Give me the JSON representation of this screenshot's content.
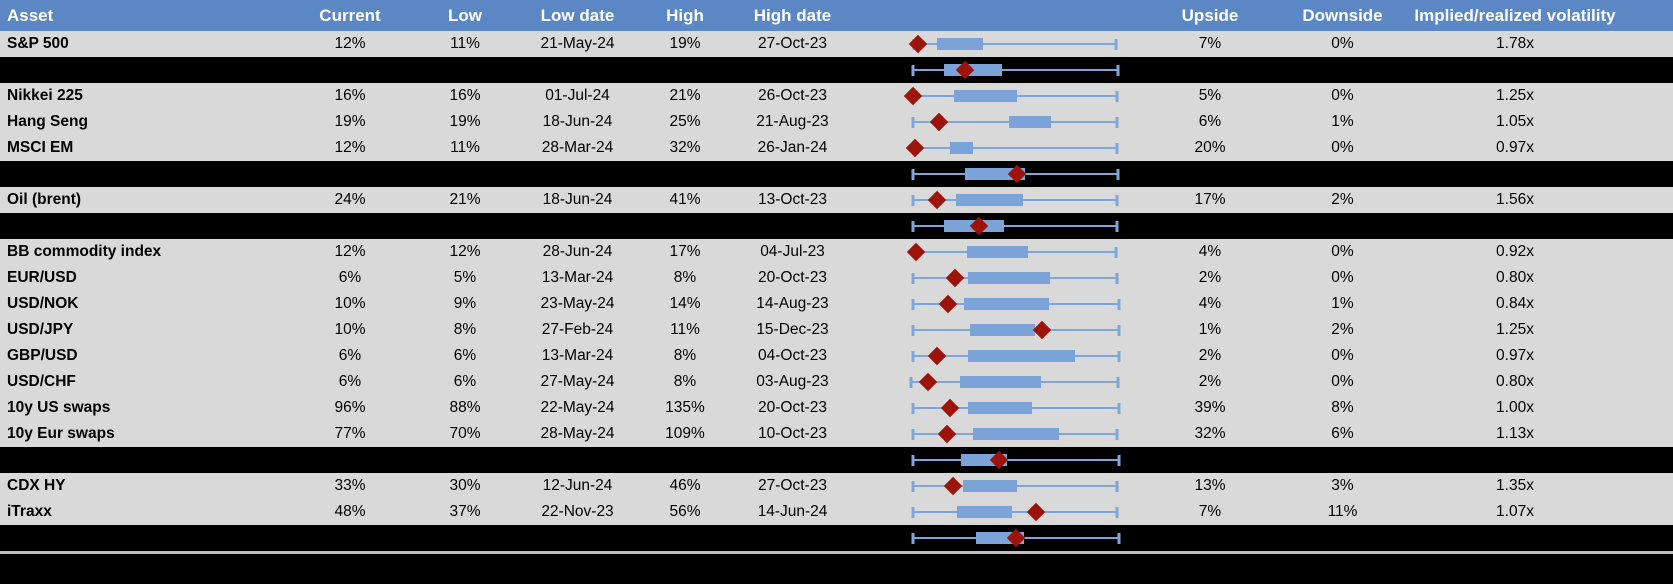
{
  "colors": {
    "header_bg": "#5B88C5",
    "header_text": "#FFFFFF",
    "row_bg": "#D9D9D9",
    "separator_bg": "#000000",
    "box_fill": "#7BA3D7",
    "whisker": "#7FA6DC",
    "marker": "#9E1309",
    "text": "#000000",
    "bottom_divider": "#BFBFBF"
  },
  "chart_data": {
    "type": "table",
    "title": "Implied volatility table with embedded box-and-whisker range charts",
    "columns": [
      "Asset",
      "Current",
      "Low",
      "Low date",
      "High",
      "High date",
      "Upside",
      "Downside",
      "Implied/realized volatility"
    ],
    "boxplot_scale_note": "box geometry normalized 0-100 across each row's plotted low-high span; whisker_lo/hi = whisker ends, box_lo/hi = blue box, marker = red diamond (current)",
    "rows": [
      {
        "kind": "asset",
        "asset": "S&P 500",
        "current": "12%",
        "low": "11%",
        "low_date": "21-May-24",
        "high": "19%",
        "high_date": "27-Oct-23",
        "upside": "7%",
        "downside": "0%",
        "implied_realized": "1.78x",
        "box": {
          "whisker_lo": 2,
          "box_lo": 13,
          "box_hi": 35,
          "whisker_hi": 98,
          "marker": 4
        }
      },
      {
        "kind": "separator",
        "box": {
          "whisker_lo": 1.5,
          "box_lo": 16,
          "box_hi": 44,
          "whisker_hi": 99,
          "marker": 26
        }
      },
      {
        "kind": "asset",
        "asset": "Nikkei 225",
        "current": "16%",
        "low": "16%",
        "low_date": "01-Jul-24",
        "high": "21%",
        "high_date": "26-Oct-23",
        "upside": "5%",
        "downside": "0%",
        "implied_realized": "1.25x",
        "box": {
          "whisker_lo": 1.5,
          "box_lo": 21,
          "box_hi": 51,
          "whisker_hi": 98.5,
          "marker": 1.5
        }
      },
      {
        "kind": "asset",
        "asset": "Hang Seng",
        "current": "19%",
        "low": "19%",
        "low_date": "18-Jun-24",
        "high": "25%",
        "high_date": "21-Aug-23",
        "upside": "6%",
        "downside": "1%",
        "implied_realized": "1.05x",
        "box": {
          "whisker_lo": 1.5,
          "box_lo": 47,
          "box_hi": 67,
          "whisker_hi": 98.5,
          "marker": 14
        }
      },
      {
        "kind": "asset",
        "asset": "MSCI EM",
        "current": "12%",
        "low": "11%",
        "low_date": "28-Mar-24",
        "high": "32%",
        "high_date": "26-Jan-24",
        "upside": "20%",
        "downside": "0%",
        "implied_realized": "0.97x",
        "box": {
          "whisker_lo": 2,
          "box_lo": 19,
          "box_hi": 30,
          "whisker_hi": 98.5,
          "marker": 2.5
        }
      },
      {
        "kind": "separator",
        "box": {
          "whisker_lo": 1.5,
          "box_lo": 26,
          "box_hi": 55,
          "whisker_hi": 99,
          "marker": 51
        }
      },
      {
        "kind": "asset",
        "asset": "Oil (brent)",
        "current": "24%",
        "low": "21%",
        "low_date": "18-Jun-24",
        "high": "41%",
        "high_date": "13-Oct-23",
        "upside": "17%",
        "downside": "2%",
        "implied_realized": "1.56x",
        "box": {
          "whisker_lo": 1.5,
          "box_lo": 22,
          "box_hi": 54,
          "whisker_hi": 98.5,
          "marker": 13
        }
      },
      {
        "kind": "separator",
        "box": {
          "whisker_lo": 1.5,
          "box_lo": 16,
          "box_hi": 45,
          "whisker_hi": 98.5,
          "marker": 33
        }
      },
      {
        "kind": "asset",
        "asset": "BB commodity index",
        "current": "12%",
        "low": "12%",
        "low_date": "28-Jun-24",
        "high": "17%",
        "high_date": "04-Jul-23",
        "upside": "4%",
        "downside": "0%",
        "implied_realized": "0.92x",
        "box": {
          "whisker_lo": 3,
          "box_lo": 27,
          "box_hi": 56,
          "whisker_hi": 98,
          "marker": 3
        }
      },
      {
        "kind": "asset",
        "asset": "EUR/USD",
        "current": "6%",
        "low": "5%",
        "low_date": "13-Mar-24",
        "high": "8%",
        "high_date": "20-Oct-23",
        "upside": "2%",
        "downside": "0%",
        "implied_realized": "0.80x",
        "box": {
          "whisker_lo": 1.5,
          "box_lo": 27.5,
          "box_hi": 66.5,
          "whisker_hi": 98.5,
          "marker": 21.5
        }
      },
      {
        "kind": "asset",
        "asset": "USD/NOK",
        "current": "10%",
        "low": "9%",
        "low_date": "23-May-24",
        "high": "14%",
        "high_date": "14-Aug-23",
        "upside": "4%",
        "downside": "1%",
        "implied_realized": "0.84x",
        "box": {
          "whisker_lo": 1.5,
          "box_lo": 25.5,
          "box_hi": 66,
          "whisker_hi": 99.5,
          "marker": 18
        }
      },
      {
        "kind": "asset",
        "asset": "USD/JPY",
        "current": "10%",
        "low": "8%",
        "low_date": "27-Feb-24",
        "high": "11%",
        "high_date": "15-Dec-23",
        "upside": "1%",
        "downside": "2%",
        "implied_realized": "1.25x",
        "box": {
          "whisker_lo": 1.5,
          "box_lo": 28.5,
          "box_hi": 59.5,
          "whisker_hi": 99.5,
          "marker": 63
        }
      },
      {
        "kind": "asset",
        "asset": "GBP/USD",
        "current": "6%",
        "low": "6%",
        "low_date": "13-Mar-24",
        "high": "8%",
        "high_date": "04-Oct-23",
        "upside": "2%",
        "downside": "0%",
        "implied_realized": "0.97x",
        "box": {
          "whisker_lo": 1.5,
          "box_lo": 27.5,
          "box_hi": 78.5,
          "whisker_hi": 99.5,
          "marker": 13
        }
      },
      {
        "kind": "asset",
        "asset": "USD/CHF",
        "current": "6%",
        "low": "6%",
        "low_date": "27-May-24",
        "high": "8%",
        "high_date": "03-Aug-23",
        "upside": "2%",
        "downside": "0%",
        "implied_realized": "0.80x",
        "box": {
          "whisker_lo": 0.5,
          "box_lo": 24,
          "box_hi": 62.5,
          "whisker_hi": 99,
          "marker": 8.5
        }
      },
      {
        "kind": "asset",
        "asset": "10y US swaps",
        "current": "96%",
        "low": "88%",
        "low_date": "22-May-24",
        "high": "135%",
        "high_date": "20-Oct-23",
        "upside": "39%",
        "downside": "8%",
        "implied_realized": "1.00x",
        "box": {
          "whisker_lo": 1.5,
          "box_lo": 27.5,
          "box_hi": 58,
          "whisker_hi": 99.5,
          "marker": 19
        }
      },
      {
        "kind": "asset",
        "asset": "10y Eur swaps",
        "current": "77%",
        "low": "70%",
        "low_date": "28-May-24",
        "high": "109%",
        "high_date": "10-Oct-23",
        "upside": "32%",
        "downside": "6%",
        "implied_realized": "1.13x",
        "box": {
          "whisker_lo": 1.5,
          "box_lo": 30,
          "box_hi": 71,
          "whisker_hi": 98.5,
          "marker": 17.5
        }
      },
      {
        "kind": "separator",
        "box": {
          "whisker_lo": 1.5,
          "box_lo": 24.5,
          "box_hi": 46,
          "whisker_hi": 99.5,
          "marker": 42.5
        }
      },
      {
        "kind": "asset",
        "asset": "CDX HY",
        "current": "33%",
        "low": "30%",
        "low_date": "12-Jun-24",
        "high": "46%",
        "high_date": "27-Oct-23",
        "upside": "13%",
        "downside": "3%",
        "implied_realized": "1.35x",
        "box": {
          "whisker_lo": 1.5,
          "box_lo": 25,
          "box_hi": 51,
          "whisker_hi": 98.5,
          "marker": 20.5
        }
      },
      {
        "kind": "asset",
        "asset": "iTraxx",
        "current": "48%",
        "low": "37%",
        "low_date": "22-Nov-23",
        "high": "56%",
        "high_date": "14-Jun-24",
        "upside": "7%",
        "downside": "11%",
        "implied_realized": "1.07x",
        "box": {
          "whisker_lo": 1.5,
          "box_lo": 22.5,
          "box_hi": 48.5,
          "whisker_hi": 98.5,
          "marker": 60
        }
      },
      {
        "kind": "separator",
        "box": {
          "whisker_lo": 1.5,
          "box_lo": 31.5,
          "box_hi": 54.5,
          "whisker_hi": 99.5,
          "marker": 50.5
        }
      }
    ]
  }
}
